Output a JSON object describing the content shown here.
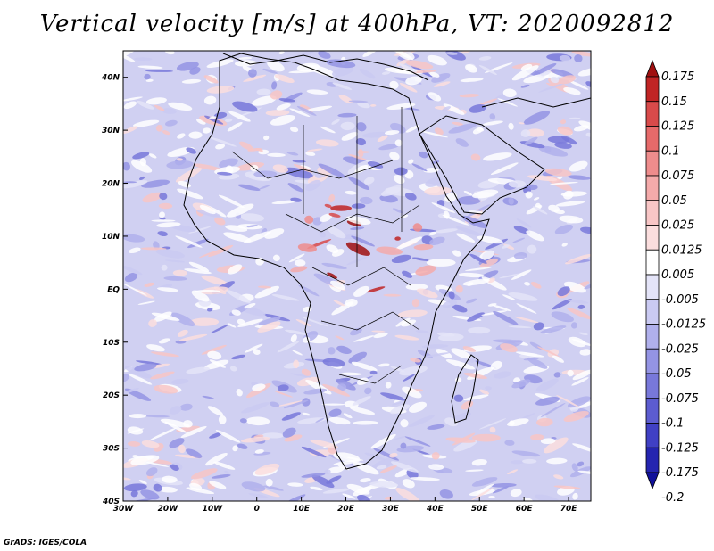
{
  "title": "Vertical velocity [m/s] at 400hPa, VT: 2020092812",
  "credit": "GrADS: IGES/COLA",
  "map": {
    "lon_range": [
      -30,
      75
    ],
    "lat_range": [
      -40,
      45
    ],
    "lon_ticks": [
      "30W",
      "20W",
      "10W",
      "0",
      "10E",
      "20E",
      "30E",
      "40E",
      "50E",
      "60E",
      "70E"
    ],
    "lat_ticks": [
      "40N",
      "30N",
      "20N",
      "10N",
      "EQ",
      "10S",
      "20S",
      "30S",
      "40S"
    ],
    "field": "vertical velocity"
  },
  "colorbar": {
    "labels": [
      "0.175",
      "0.15",
      "0.125",
      "0.1",
      "0.075",
      "0.05",
      "0.025",
      "0.0125",
      "0.005",
      "-0.005",
      "-0.0125",
      "-0.025",
      "-0.05",
      "-0.075",
      "-0.1",
      "-0.125",
      "-0.175",
      "-0.2"
    ],
    "colors": [
      "#a01010",
      "#c02424",
      "#d84a4a",
      "#e66a6a",
      "#ee8c8c",
      "#f4aaaa",
      "#f8c6c6",
      "#fbdede",
      "#ffffff",
      "#e4e4f8",
      "#cacaf2",
      "#b0b0ec",
      "#9494e4",
      "#7878da",
      "#5c5cd0",
      "#4040c4",
      "#2424b0",
      "#10109a"
    ]
  }
}
